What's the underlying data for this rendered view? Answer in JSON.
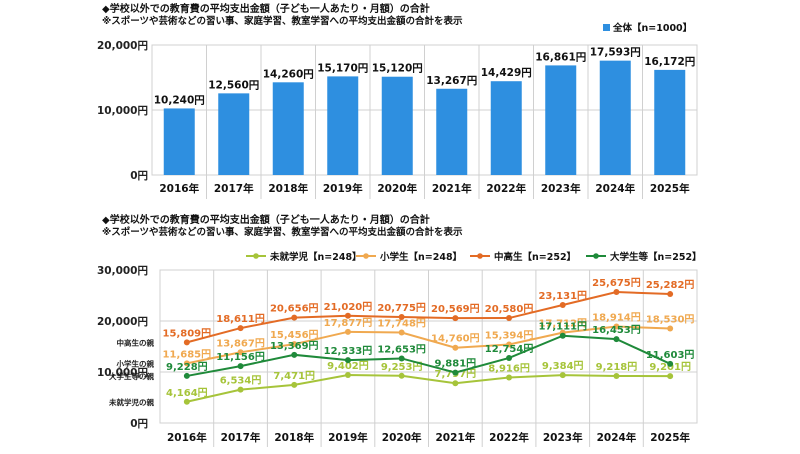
{
  "chart_data": [
    {
      "type": "bar",
      "title": "◆学校以外での教育費の平均支出金額（子ども一人あたり・月額）の合計",
      "subtitle": "※スポーツや芸術などの習い事、家庭学習、教室学習への平均支出金額の合計を表示",
      "categories": [
        "2016年",
        "2017年",
        "2018年",
        "2019年",
        "2020年",
        "2021年",
        "2022年",
        "2023年",
        "2024年",
        "2025年"
      ],
      "series": [
        {
          "name": "全体【n=1000】",
          "color": "#2e8fe0",
          "values": [
            10240,
            12560,
            14260,
            15170,
            15120,
            13267,
            14429,
            16861,
            17593,
            16172
          ],
          "labels": [
            "10,240円",
            "12,560円",
            "14,260円",
            "15,170円",
            "15,120円",
            "13,267円",
            "14,429円",
            "16,861円",
            "17,593円",
            "16,172円"
          ]
        }
      ],
      "yticks": [
        "0円",
        "10,000円",
        "20,000円"
      ],
      "ylim": [
        0,
        20000
      ],
      "grid": true,
      "legend_position": "top-right"
    },
    {
      "type": "line",
      "title": "◆学校以外での教育費の平均支出金額（子ども一人あたり・月額）の合計",
      "subtitle": "※スポーツや芸術などの習い事、家庭学習、教室学習への平均支出金額の合計を表示",
      "categories": [
        "2016年",
        "2017年",
        "2018年",
        "2019年",
        "2020年",
        "2021年",
        "2022年",
        "2023年",
        "2024年",
        "2025年"
      ],
      "series": [
        {
          "name": "未就学児【n=248】",
          "color": "#a6c43a",
          "values": [
            4164,
            6534,
            7471,
            9402,
            9253,
            7797,
            8916,
            9384,
            9218,
            9201
          ],
          "labels": [
            "4,164円",
            "6,534円",
            "7,471円",
            "9,402円",
            "9,253円",
            "7,797円",
            "8,916円",
            "9,384円",
            "9,218円",
            "9,201円"
          ]
        },
        {
          "name": "小学生【n=248】",
          "color": "#f0a950",
          "values": [
            11685,
            13867,
            15456,
            17877,
            17748,
            14760,
            15394,
            17712,
            18914,
            18530
          ],
          "labels": [
            "11,685円",
            "13,867円",
            "15,456円",
            "17,877円",
            "17,748円",
            "14,760円",
            "15,394円",
            "17,712円",
            "18,914円",
            "18,530円"
          ]
        },
        {
          "name": "中高生【n=252】",
          "color": "#e36b25",
          "values": [
            15809,
            18611,
            20656,
            21020,
            20775,
            20569,
            20580,
            23131,
            25675,
            25282
          ],
          "labels": [
            "15,809円",
            "18,611円",
            "20,656円",
            "21,020円",
            "20,775円",
            "20,569円",
            "20,580円",
            "23,131円",
            "25,675円",
            "25,282円"
          ]
        },
        {
          "name": "大学生等【n=252】",
          "color": "#1f8a3a",
          "values": [
            9228,
            11156,
            13369,
            12333,
            12653,
            9881,
            12754,
            17111,
            16453,
            11603
          ],
          "labels": [
            "9,228円",
            "11,156円",
            "13,369円",
            "12,333円",
            "12,653円",
            "9,881円",
            "12,754円",
            "17,111円",
            "16,453円",
            "11,603円"
          ]
        }
      ],
      "yticks": [
        "0円",
        "10,000円",
        "20,000円",
        "30,000円"
      ],
      "ylim": [
        0,
        30000
      ],
      "grid": true,
      "legend_position": "top",
      "side_labels": [
        "中高生の親",
        "小学生の親",
        "大学生等の親",
        "未就学児の親"
      ]
    }
  ]
}
